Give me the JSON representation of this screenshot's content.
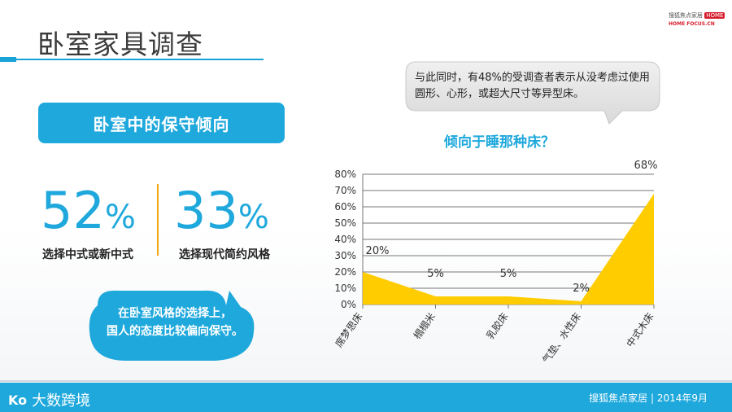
{
  "slide": {
    "title": "卧室家具调查",
    "logo": {
      "brand_cn": "搜狐焦点家居",
      "home_badge": "HOME",
      "brand_en": "HOME FOCUS.CN"
    }
  },
  "left": {
    "section_tag": "卧室中的保守倾向",
    "stats": [
      {
        "number": "52",
        "unit": "%",
        "label": "选择中式或新中式"
      },
      {
        "number": "33",
        "unit": "%",
        "label": "选择现代简约风格"
      }
    ],
    "bubble_text_line1": "在卧室风格的选择上，",
    "bubble_text_line2": "国人的态度比较偏向保守。"
  },
  "right": {
    "bubble_text": "与此同时，有48%的受调查者表示从没考虑过使用圆形、心形，或超大尺寸等异型床。"
  },
  "chart_data": {
    "type": "area",
    "title": "倾向于睡那种床？",
    "categories": [
      "席梦思床",
      "榻榻米",
      "乳胶床",
      "气垫、水性床",
      "中式木床"
    ],
    "values": [
      20,
      5,
      5,
      2,
      68
    ],
    "data_labels": [
      "20%",
      "5%",
      "5%",
      "2%",
      "68%"
    ],
    "y_ticks": [
      "0%",
      "10%",
      "20%",
      "30%",
      "40%",
      "50%",
      "60%",
      "70%",
      "80%"
    ],
    "ylim": [
      0,
      80
    ],
    "grid": true,
    "legend": "none",
    "fill_color": "#ffcc00"
  },
  "footer": {
    "brand_mark": "Ko",
    "brand": "大数跨境",
    "right_text": "搜狐焦点家居 | 2014年9月"
  },
  "colors": {
    "accent": "#1fa8dc",
    "divider": "#f2a90d"
  }
}
